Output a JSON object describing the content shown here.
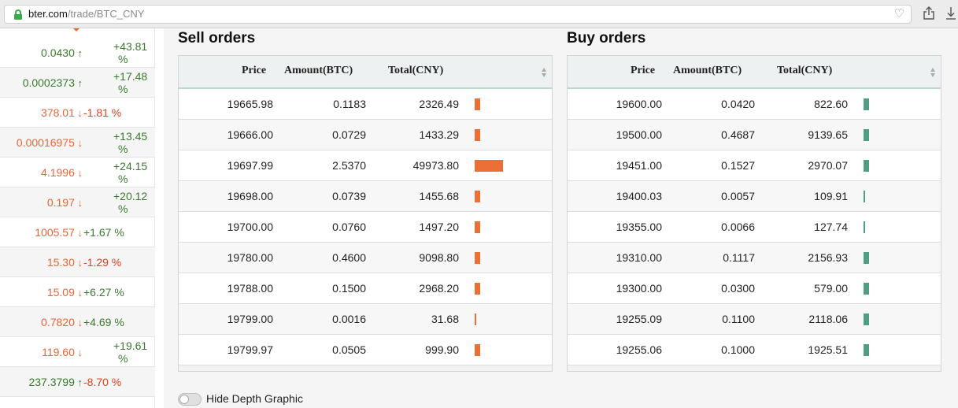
{
  "browser": {
    "url_host": "bter.com",
    "url_path": "/trade/BTC_CNY"
  },
  "ticker": [
    {
      "price": "0.0430",
      "dir": "up",
      "change": "+43.81 %",
      "change_lines": [
        "+43.81",
        "%"
      ],
      "change_color": "up"
    },
    {
      "price": "0.0002373",
      "dir": "up",
      "change": "+17.48 %",
      "change_lines": [
        "+17.48",
        "%"
      ],
      "change_color": "up"
    },
    {
      "price": "378.01",
      "dir": "down",
      "change": "-1.81 %",
      "change_lines": [
        "-1.81 %"
      ],
      "change_color": "red"
    },
    {
      "price": "0.00016975",
      "dir": "down",
      "change": "+13.45 %",
      "change_lines": [
        "+13.45",
        "%"
      ],
      "change_color": "up"
    },
    {
      "price": "4.1996",
      "dir": "down",
      "change": "+24.15 %",
      "change_lines": [
        "+24.15",
        "%"
      ],
      "change_color": "up"
    },
    {
      "price": "0.197",
      "dir": "down",
      "change": "+20.12 %",
      "change_lines": [
        "+20.12",
        "%"
      ],
      "change_color": "up"
    },
    {
      "price": "1005.57",
      "dir": "down",
      "change": "+1.67 %",
      "change_lines": [
        "+1.67 %"
      ],
      "change_color": "up"
    },
    {
      "price": "15.30",
      "dir": "down",
      "change": "-1.29 %",
      "change_lines": [
        "-1.29 %"
      ],
      "change_color": "red"
    },
    {
      "price": "15.09",
      "dir": "down",
      "change": "+6.27 %",
      "change_lines": [
        "+6.27 %"
      ],
      "change_color": "up"
    },
    {
      "price": "0.7820",
      "dir": "down",
      "change": "+4.69 %",
      "change_lines": [
        "+4.69 %"
      ],
      "change_color": "up"
    },
    {
      "price": "119.60",
      "dir": "down",
      "change": "+19.61 %",
      "change_lines": [
        "+19.61",
        "%"
      ],
      "change_color": "up"
    },
    {
      "price": "237.3799",
      "dir": "up",
      "change": "-8.70 %",
      "change_lines": [
        "-8.70 %"
      ],
      "change_color": "red"
    }
  ],
  "sell": {
    "title": "Sell orders",
    "columns": {
      "price": "Price",
      "amount": "Amount(BTC)",
      "total": "Total(CNY)"
    },
    "bar_color": "#ec7036",
    "rows": [
      {
        "price": "19665.98",
        "amount": "0.1183",
        "total": "2326.49",
        "depth": 2326.49
      },
      {
        "price": "19666.00",
        "amount": "0.0729",
        "total": "1433.29",
        "depth": 1433.29
      },
      {
        "price": "19697.99",
        "amount": "2.5370",
        "total": "49973.80",
        "depth": 49973.8
      },
      {
        "price": "19698.00",
        "amount": "0.0739",
        "total": "1455.68",
        "depth": 1455.68
      },
      {
        "price": "19700.00",
        "amount": "0.0760",
        "total": "1497.20",
        "depth": 1497.2
      },
      {
        "price": "19780.00",
        "amount": "0.4600",
        "total": "9098.80",
        "depth": 9098.8
      },
      {
        "price": "19788.00",
        "amount": "0.1500",
        "total": "2968.20",
        "depth": 2968.2
      },
      {
        "price": "19799.00",
        "amount": "0.0016",
        "total": "31.68",
        "depth": 31.68
      },
      {
        "price": "19799.97",
        "amount": "0.0505",
        "total": "999.90",
        "depth": 999.9
      }
    ]
  },
  "buy": {
    "title": "Buy orders",
    "columns": {
      "price": "Price",
      "amount": "Amount(BTC)",
      "total": "Total(CNY)"
    },
    "bar_color": "#4e9e83",
    "rows": [
      {
        "price": "19600.00",
        "amount": "0.0420",
        "total": "822.60",
        "depth": 822.6
      },
      {
        "price": "19500.00",
        "amount": "0.4687",
        "total": "9139.65",
        "depth": 9139.65
      },
      {
        "price": "19451.00",
        "amount": "0.1527",
        "total": "2970.07",
        "depth": 2970.07
      },
      {
        "price": "19400.03",
        "amount": "0.0057",
        "total": "109.91",
        "depth": 109.91
      },
      {
        "price": "19355.00",
        "amount": "0.0066",
        "total": "127.74",
        "depth": 127.74
      },
      {
        "price": "19310.00",
        "amount": "0.1117",
        "total": "2156.93",
        "depth": 2156.93
      },
      {
        "price": "19300.00",
        "amount": "0.0300",
        "total": "579.00",
        "depth": 579.0
      },
      {
        "price": "19255.09",
        "amount": "0.1100",
        "total": "2118.06",
        "depth": 2118.06
      },
      {
        "price": "19255.06",
        "amount": "0.1000",
        "total": "1925.51",
        "depth": 1925.51
      }
    ]
  },
  "depth_toggle": {
    "label": "Hide Depth Graphic",
    "on": false
  },
  "colors": {
    "up": "#3a7a2e",
    "down": "#e8663a",
    "red": "#e2411f",
    "header_border": "#b9d6d1"
  },
  "icons": [
    "lock-icon",
    "heart-icon",
    "share-icon",
    "download-icon",
    "sort-icon",
    "arrow-up-icon",
    "arrow-down-icon"
  ]
}
